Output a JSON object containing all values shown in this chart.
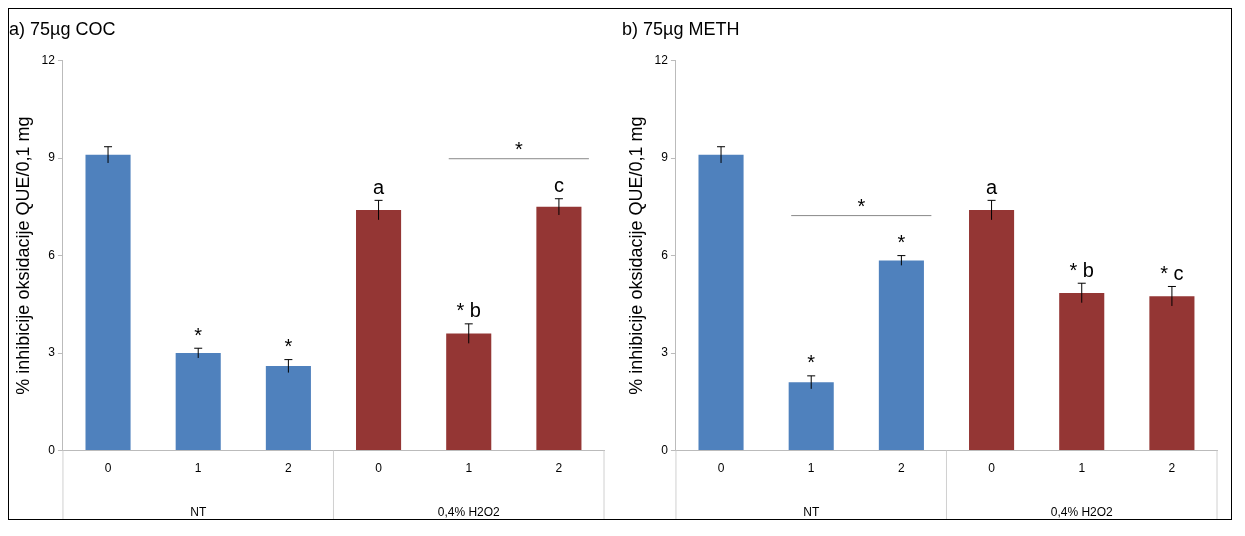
{
  "chart_data": [
    {
      "type": "bar",
      "title": "a) 75µg COC",
      "ylabel": "% inhibicije oksidacije QUE/0,1 mg",
      "categories": [
        "0",
        "1",
        "2",
        "0",
        "1",
        "2"
      ],
      "values": [
        9.1,
        3.0,
        2.6,
        7.4,
        3.6,
        7.5
      ],
      "colors": [
        "#4f81bd",
        "#4f81bd",
        "#4f81bd",
        "#943634",
        "#943634",
        "#943634"
      ],
      "errors": [
        0.25,
        0.15,
        0.2,
        0.3,
        0.3,
        0.25
      ],
      "value_labels": [
        null,
        "*",
        "*",
        "a",
        "* b",
        "c"
      ],
      "ylim": [
        0,
        12
      ],
      "yticks": [
        0,
        3,
        6,
        9,
        12
      ],
      "grid": false,
      "legend": false,
      "annotations": [
        "*",
        "NT",
        "0,4% H2O2"
      ]
    },
    {
      "type": "bar",
      "title": "b) 75µg METH",
      "ylabel": "% inhibicije oksidacije QUE/0,1 mg",
      "categories": [
        "0",
        "1",
        "2",
        "0",
        "1",
        "2"
      ],
      "values": [
        9.1,
        2.1,
        5.85,
        7.4,
        4.85,
        4.75
      ],
      "colors": [
        "#4f81bd",
        "#4f81bd",
        "#4f81bd",
        "#943634",
        "#943634",
        "#943634"
      ],
      "errors": [
        0.25,
        0.2,
        0.15,
        0.3,
        0.3,
        0.3
      ],
      "value_labels": [
        null,
        "*",
        "*",
        "a",
        "* b",
        "* c"
      ],
      "ylim": [
        0,
        12
      ],
      "yticks": [
        0,
        3,
        6,
        9,
        12
      ],
      "grid": false,
      "legend": false,
      "annotations": [
        "*",
        "NT",
        "0,4% H2O2"
      ]
    }
  ]
}
